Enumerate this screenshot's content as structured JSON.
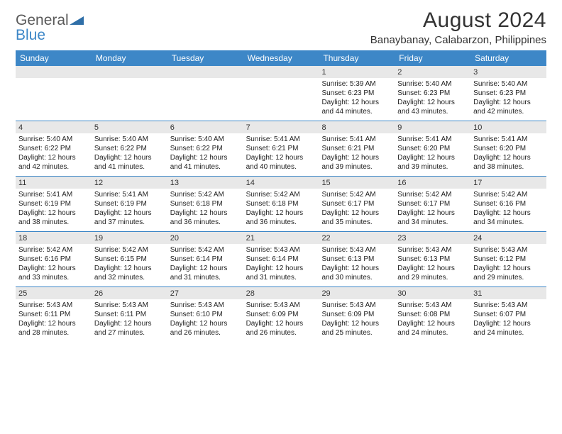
{
  "logo": {
    "text_general": "General",
    "text_blue": "Blue",
    "shape_color": "#2f6fa8"
  },
  "header": {
    "title": "August 2024",
    "location": "Banaybanay, Calabarzon, Philippines"
  },
  "colors": {
    "header_bar": "#3d87c7",
    "daynum_bg": "#e8e8e8",
    "text": "#222222",
    "title_text": "#333333"
  },
  "daysOfWeek": [
    "Sunday",
    "Monday",
    "Tuesday",
    "Wednesday",
    "Thursday",
    "Friday",
    "Saturday"
  ],
  "weeks": [
    [
      {
        "n": "",
        "sr": "",
        "ss": "",
        "dl": ""
      },
      {
        "n": "",
        "sr": "",
        "ss": "",
        "dl": ""
      },
      {
        "n": "",
        "sr": "",
        "ss": "",
        "dl": ""
      },
      {
        "n": "",
        "sr": "",
        "ss": "",
        "dl": ""
      },
      {
        "n": "1",
        "sr": "Sunrise: 5:39 AM",
        "ss": "Sunset: 6:23 PM",
        "dl": "Daylight: 12 hours and 44 minutes."
      },
      {
        "n": "2",
        "sr": "Sunrise: 5:40 AM",
        "ss": "Sunset: 6:23 PM",
        "dl": "Daylight: 12 hours and 43 minutes."
      },
      {
        "n": "3",
        "sr": "Sunrise: 5:40 AM",
        "ss": "Sunset: 6:23 PM",
        "dl": "Daylight: 12 hours and 42 minutes."
      }
    ],
    [
      {
        "n": "4",
        "sr": "Sunrise: 5:40 AM",
        "ss": "Sunset: 6:22 PM",
        "dl": "Daylight: 12 hours and 42 minutes."
      },
      {
        "n": "5",
        "sr": "Sunrise: 5:40 AM",
        "ss": "Sunset: 6:22 PM",
        "dl": "Daylight: 12 hours and 41 minutes."
      },
      {
        "n": "6",
        "sr": "Sunrise: 5:40 AM",
        "ss": "Sunset: 6:22 PM",
        "dl": "Daylight: 12 hours and 41 minutes."
      },
      {
        "n": "7",
        "sr": "Sunrise: 5:41 AM",
        "ss": "Sunset: 6:21 PM",
        "dl": "Daylight: 12 hours and 40 minutes."
      },
      {
        "n": "8",
        "sr": "Sunrise: 5:41 AM",
        "ss": "Sunset: 6:21 PM",
        "dl": "Daylight: 12 hours and 39 minutes."
      },
      {
        "n": "9",
        "sr": "Sunrise: 5:41 AM",
        "ss": "Sunset: 6:20 PM",
        "dl": "Daylight: 12 hours and 39 minutes."
      },
      {
        "n": "10",
        "sr": "Sunrise: 5:41 AM",
        "ss": "Sunset: 6:20 PM",
        "dl": "Daylight: 12 hours and 38 minutes."
      }
    ],
    [
      {
        "n": "11",
        "sr": "Sunrise: 5:41 AM",
        "ss": "Sunset: 6:19 PM",
        "dl": "Daylight: 12 hours and 38 minutes."
      },
      {
        "n": "12",
        "sr": "Sunrise: 5:41 AM",
        "ss": "Sunset: 6:19 PM",
        "dl": "Daylight: 12 hours and 37 minutes."
      },
      {
        "n": "13",
        "sr": "Sunrise: 5:42 AM",
        "ss": "Sunset: 6:18 PM",
        "dl": "Daylight: 12 hours and 36 minutes."
      },
      {
        "n": "14",
        "sr": "Sunrise: 5:42 AM",
        "ss": "Sunset: 6:18 PM",
        "dl": "Daylight: 12 hours and 36 minutes."
      },
      {
        "n": "15",
        "sr": "Sunrise: 5:42 AM",
        "ss": "Sunset: 6:17 PM",
        "dl": "Daylight: 12 hours and 35 minutes."
      },
      {
        "n": "16",
        "sr": "Sunrise: 5:42 AM",
        "ss": "Sunset: 6:17 PM",
        "dl": "Daylight: 12 hours and 34 minutes."
      },
      {
        "n": "17",
        "sr": "Sunrise: 5:42 AM",
        "ss": "Sunset: 6:16 PM",
        "dl": "Daylight: 12 hours and 34 minutes."
      }
    ],
    [
      {
        "n": "18",
        "sr": "Sunrise: 5:42 AM",
        "ss": "Sunset: 6:16 PM",
        "dl": "Daylight: 12 hours and 33 minutes."
      },
      {
        "n": "19",
        "sr": "Sunrise: 5:42 AM",
        "ss": "Sunset: 6:15 PM",
        "dl": "Daylight: 12 hours and 32 minutes."
      },
      {
        "n": "20",
        "sr": "Sunrise: 5:42 AM",
        "ss": "Sunset: 6:14 PM",
        "dl": "Daylight: 12 hours and 31 minutes."
      },
      {
        "n": "21",
        "sr": "Sunrise: 5:43 AM",
        "ss": "Sunset: 6:14 PM",
        "dl": "Daylight: 12 hours and 31 minutes."
      },
      {
        "n": "22",
        "sr": "Sunrise: 5:43 AM",
        "ss": "Sunset: 6:13 PM",
        "dl": "Daylight: 12 hours and 30 minutes."
      },
      {
        "n": "23",
        "sr": "Sunrise: 5:43 AM",
        "ss": "Sunset: 6:13 PM",
        "dl": "Daylight: 12 hours and 29 minutes."
      },
      {
        "n": "24",
        "sr": "Sunrise: 5:43 AM",
        "ss": "Sunset: 6:12 PM",
        "dl": "Daylight: 12 hours and 29 minutes."
      }
    ],
    [
      {
        "n": "25",
        "sr": "Sunrise: 5:43 AM",
        "ss": "Sunset: 6:11 PM",
        "dl": "Daylight: 12 hours and 28 minutes."
      },
      {
        "n": "26",
        "sr": "Sunrise: 5:43 AM",
        "ss": "Sunset: 6:11 PM",
        "dl": "Daylight: 12 hours and 27 minutes."
      },
      {
        "n": "27",
        "sr": "Sunrise: 5:43 AM",
        "ss": "Sunset: 6:10 PM",
        "dl": "Daylight: 12 hours and 26 minutes."
      },
      {
        "n": "28",
        "sr": "Sunrise: 5:43 AM",
        "ss": "Sunset: 6:09 PM",
        "dl": "Daylight: 12 hours and 26 minutes."
      },
      {
        "n": "29",
        "sr": "Sunrise: 5:43 AM",
        "ss": "Sunset: 6:09 PM",
        "dl": "Daylight: 12 hours and 25 minutes."
      },
      {
        "n": "30",
        "sr": "Sunrise: 5:43 AM",
        "ss": "Sunset: 6:08 PM",
        "dl": "Daylight: 12 hours and 24 minutes."
      },
      {
        "n": "31",
        "sr": "Sunrise: 5:43 AM",
        "ss": "Sunset: 6:07 PM",
        "dl": "Daylight: 12 hours and 24 minutes."
      }
    ]
  ]
}
